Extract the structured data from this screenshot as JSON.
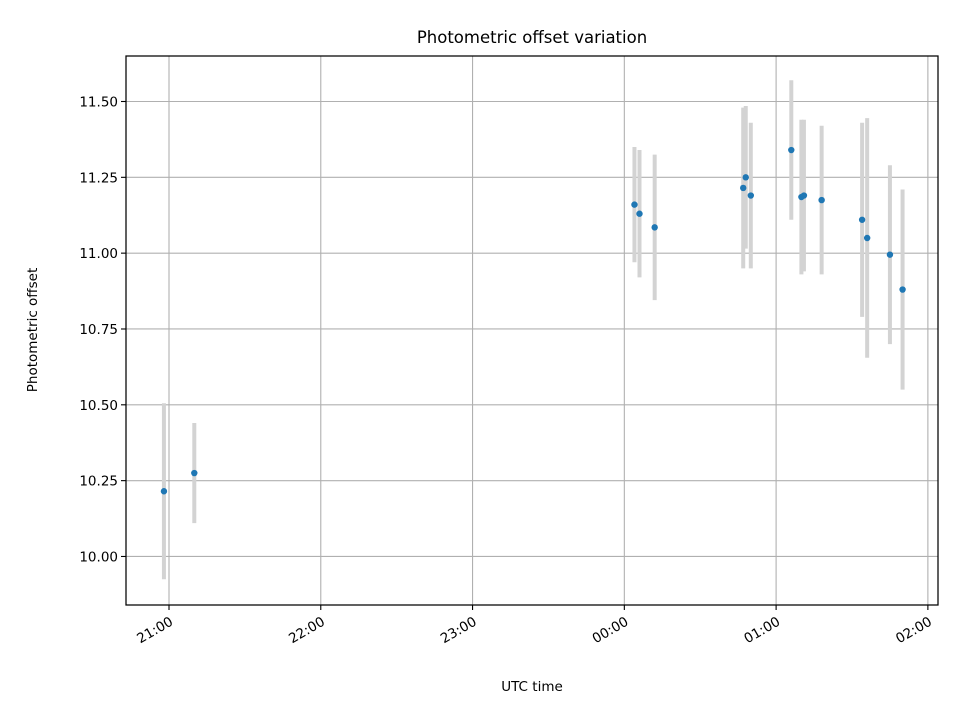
{
  "chart_data": {
    "type": "scatter",
    "title": "Photometric offset variation",
    "xlabel": "UTC time",
    "ylabel": "Photometric offset",
    "grid": true,
    "x_start_date": "2000-01-01",
    "xlim": [
      "2000-01-01 20:43",
      "2000-01-02 02:04"
    ],
    "ylim": [
      9.84,
      11.65
    ],
    "x_ticks": [
      {
        "value": "2000-01-01 21:00",
        "label": "21:00"
      },
      {
        "value": "2000-01-01 22:00",
        "label": "22:00"
      },
      {
        "value": "2000-01-01 23:00",
        "label": "23:00"
      },
      {
        "value": "2000-01-02 00:00",
        "label": "00:00"
      },
      {
        "value": "2000-01-02 01:00",
        "label": "01:00"
      },
      {
        "value": "2000-01-02 02:00",
        "label": "02:00"
      }
    ],
    "y_ticks": [
      {
        "value": 10.0,
        "label": "10.00"
      },
      {
        "value": 10.25,
        "label": "10.25"
      },
      {
        "value": 10.5,
        "label": "10.50"
      },
      {
        "value": 10.75,
        "label": "10.75"
      },
      {
        "value": 11.0,
        "label": "11.00"
      },
      {
        "value": 11.25,
        "label": "11.25"
      },
      {
        "value": 11.5,
        "label": "11.50"
      }
    ],
    "colors": {
      "points": "#1f77b4",
      "errorbars": "#d3d3d3",
      "grid": "#b0b0b0"
    },
    "series": [
      {
        "points": [
          {
            "x": "2000-01-01 20:58",
            "y": 10.215,
            "err": 0.29
          },
          {
            "x": "2000-01-01 21:10",
            "y": 10.275,
            "err": 0.165
          },
          {
            "x": "2000-01-02 00:04",
            "y": 11.16,
            "err": 0.19
          },
          {
            "x": "2000-01-02 00:06",
            "y": 11.13,
            "err": 0.21
          },
          {
            "x": "2000-01-02 00:12",
            "y": 11.085,
            "err": 0.24
          },
          {
            "x": "2000-01-02 00:47",
            "y": 11.215,
            "err": 0.265
          },
          {
            "x": "2000-01-02 00:48",
            "y": 11.25,
            "err": 0.235
          },
          {
            "x": "2000-01-02 00:50",
            "y": 11.19,
            "err": 0.24
          },
          {
            "x": "2000-01-02 01:06",
            "y": 11.34,
            "err": 0.23
          },
          {
            "x": "2000-01-02 01:10",
            "y": 11.185,
            "err": 0.255
          },
          {
            "x": "2000-01-02 01:11",
            "y": 11.19,
            "err": 0.25
          },
          {
            "x": "2000-01-02 01:18",
            "y": 11.175,
            "err": 0.245
          },
          {
            "x": "2000-01-02 01:34",
            "y": 11.11,
            "err": 0.32
          },
          {
            "x": "2000-01-02 01:36",
            "y": 11.05,
            "err": 0.395
          },
          {
            "x": "2000-01-02 01:45",
            "y": 10.995,
            "err": 0.295
          },
          {
            "x": "2000-01-02 01:50",
            "y": 10.88,
            "err": 0.33
          }
        ]
      }
    ]
  }
}
